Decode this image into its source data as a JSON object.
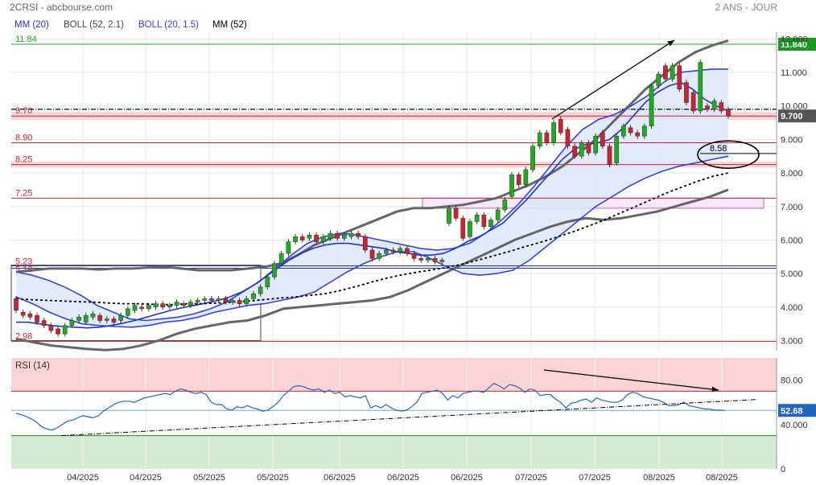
{
  "header": {
    "symbol": "2CRSI - abcbourse.com",
    "period": "2 ANS - JOUR"
  },
  "legend": [
    {
      "label": "MM (20)",
      "color": "#2233cc"
    },
    {
      "label": "BOLL (52, 2.1)",
      "color": "#666666"
    },
    {
      "label": "BOLL (20, 1.5)",
      "color": "#3344dd"
    },
    {
      "label": "MM (52)",
      "color": "#000000"
    }
  ],
  "colors": {
    "up": "#22aa22",
    "down": "#cc2233",
    "mm20": "#2233cc",
    "boll52": "#666666",
    "boll20": "#3344dd",
    "mm52": "#000000",
    "band_fill": "#dde8fa",
    "level_line": "#cc2233",
    "resistance_line": "#22aa22",
    "rsi_line": "#2266bb",
    "rsi_overbought_fill": "#fad4d4",
    "rsi_oversold_fill": "#d5ead2",
    "last_price_badge": "#555555",
    "resistance_badge": "#1a9922",
    "rsi_badge": "#2266bb"
  },
  "chart_data": {
    "type": "candlestick",
    "title": "2CRSI - abcbourse.com",
    "period": "2 ANS - JOUR",
    "price_axis": {
      "ylim": [
        2.7,
        12.2
      ],
      "ticks": [
        "12.000",
        "11.000",
        "10.000",
        "9.000",
        "8.000",
        "7.000",
        "6.000",
        "5.000",
        "4.000",
        "3.000"
      ]
    },
    "x_axis": {
      "tick_labels": [
        "04/2025",
        "04/2025",
        "05/2025",
        "05/2025",
        "06/2025",
        "06/2025",
        "06/2025",
        "07/2025",
        "07/2025",
        "08/2025",
        "08/2025"
      ]
    },
    "grid": true,
    "candles": [
      [
        4.25,
        3.9
      ],
      [
        3.85,
        3.75
      ],
      [
        3.8,
        3.7
      ],
      [
        3.75,
        3.55
      ],
      [
        3.6,
        3.45
      ],
      [
        3.45,
        3.3
      ],
      [
        3.35,
        3.2
      ],
      [
        3.2,
        3.45
      ],
      [
        3.45,
        3.6
      ],
      [
        3.6,
        3.7
      ],
      [
        3.55,
        3.75
      ],
      [
        3.7,
        3.8
      ],
      [
        3.75,
        3.6
      ],
      [
        3.6,
        3.65
      ],
      [
        3.65,
        3.55
      ],
      [
        3.6,
        3.75
      ],
      [
        3.75,
        3.95
      ],
      [
        3.9,
        4.05
      ],
      [
        4.0,
        3.95
      ],
      [
        3.95,
        4.05
      ],
      [
        4.0,
        4.1
      ],
      [
        4.1,
        4.0
      ],
      [
        4.0,
        4.05
      ],
      [
        4.05,
        4.15
      ],
      [
        4.1,
        4.05
      ],
      [
        4.05,
        4.15
      ],
      [
        4.15,
        4.2
      ],
      [
        4.2,
        4.25
      ],
      [
        4.25,
        4.2
      ],
      [
        4.2,
        4.25
      ],
      [
        4.25,
        4.15
      ],
      [
        4.15,
        4.2
      ],
      [
        4.2,
        4.1
      ],
      [
        4.1,
        4.25
      ],
      [
        4.25,
        4.4
      ],
      [
        4.4,
        4.6
      ],
      [
        4.6,
        4.9
      ],
      [
        4.9,
        5.3
      ],
      [
        5.3,
        5.6
      ],
      [
        5.6,
        5.95
      ],
      [
        5.95,
        6.1
      ],
      [
        6.1,
        6.0
      ],
      [
        6.05,
        6.15
      ],
      [
        6.15,
        5.95
      ],
      [
        5.95,
        6.1
      ],
      [
        6.05,
        6.2
      ],
      [
        6.2,
        6.05
      ],
      [
        6.05,
        6.15
      ],
      [
        6.1,
        6.2
      ],
      [
        6.2,
        6.1
      ],
      [
        6.1,
        5.7
      ],
      [
        5.7,
        5.45
      ],
      [
        5.45,
        5.6
      ],
      [
        5.6,
        5.7
      ],
      [
        5.7,
        5.65
      ],
      [
        5.65,
        5.75
      ],
      [
        5.75,
        5.6
      ],
      [
        5.6,
        5.45
      ],
      [
        5.45,
        5.4
      ],
      [
        5.4,
        5.45
      ],
      [
        5.45,
        5.35
      ],
      [
        5.35,
        5.4
      ],
      [
        6.5,
        6.95
      ],
      [
        6.95,
        6.65
      ],
      [
        6.65,
        6.05
      ],
      [
        6.1,
        6.55
      ],
      [
        6.55,
        6.75
      ],
      [
        6.75,
        6.4
      ],
      [
        6.4,
        6.6
      ],
      [
        6.6,
        6.9
      ],
      [
        6.9,
        7.2
      ],
      [
        7.3,
        7.95
      ],
      [
        7.95,
        7.65
      ],
      [
        7.65,
        8.1
      ],
      [
        8.1,
        8.8
      ],
      [
        8.8,
        9.2
      ],
      [
        9.2,
        8.9
      ],
      [
        8.9,
        9.5
      ],
      [
        9.6,
        9.2
      ],
      [
        9.3,
        8.8
      ],
      [
        8.8,
        8.5
      ],
      [
        8.5,
        8.9
      ],
      [
        8.9,
        8.6
      ],
      [
        8.6,
        9.1
      ],
      [
        9.2,
        8.8
      ],
      [
        8.8,
        8.25
      ],
      [
        8.3,
        9.1
      ],
      [
        9.1,
        9.4
      ],
      [
        9.35,
        9.2
      ],
      [
        9.2,
        9.1
      ],
      [
        9.1,
        9.4
      ],
      [
        9.4,
        10.6
      ],
      [
        10.6,
        10.95
      ],
      [
        11.2,
        10.8
      ],
      [
        10.8,
        11.2
      ],
      [
        11.2,
        10.5
      ],
      [
        10.7,
        10.1
      ],
      [
        10.4,
        9.85
      ],
      [
        9.85,
        11.3
      ],
      [
        10.0,
        9.9
      ],
      [
        9.9,
        10.15
      ],
      [
        10.1,
        9.85
      ],
      [
        9.9,
        9.7
      ]
    ],
    "moving_averages": {
      "mm20": [
        3.55,
        3.55,
        3.5,
        3.45,
        3.42,
        3.4,
        3.38,
        3.4,
        3.45,
        3.52,
        3.6,
        3.7,
        3.8,
        3.9,
        3.98,
        4.05,
        4.12,
        4.2,
        4.3,
        4.45,
        4.65,
        4.9,
        5.15,
        5.4,
        5.6,
        5.75,
        5.85,
        5.9,
        5.9,
        5.85,
        5.8,
        5.75,
        5.65,
        5.6,
        5.55,
        5.55,
        5.6,
        5.75,
        5.95,
        6.1,
        6.3,
        6.5,
        6.85,
        7.2,
        7.6,
        8.0,
        8.4,
        8.7,
        8.85,
        8.9,
        9.0,
        9.3,
        9.7,
        10.1,
        10.4,
        10.6,
        10.7,
        10.5,
        10.2,
        10.0,
        9.85
      ],
      "mm52": [
        4.25,
        4.22,
        4.2,
        4.18,
        4.16,
        4.15,
        4.12,
        4.1,
        4.1,
        4.08,
        4.07,
        4.1,
        4.1,
        4.12,
        4.15,
        4.18,
        4.22,
        4.27,
        4.3,
        4.35,
        4.4,
        4.5,
        4.62,
        4.75,
        4.87,
        4.97,
        5.05,
        5.12,
        5.2,
        5.3,
        5.42,
        5.55,
        5.68,
        5.82,
        5.95,
        6.1,
        6.25,
        6.42,
        6.6,
        6.8,
        7.0,
        7.2,
        7.4,
        7.58,
        7.75,
        7.9,
        8.0
      ],
      "mm52_start": 2,
      "boll52_upper": [
        5.05,
        5.1,
        5.15,
        5.15,
        5.15,
        5.12,
        5.15,
        5.15,
        5.18,
        5.2,
        5.15,
        5.1,
        5.1,
        5.1,
        5.15,
        5.2,
        5.3,
        5.55,
        5.85,
        6.05,
        6.25,
        6.45,
        6.65,
        6.85,
        6.95,
        6.95,
        7.0,
        7.05,
        7.15,
        7.25,
        7.45,
        7.65,
        7.9,
        8.2,
        8.6,
        9.0,
        9.5,
        10.0,
        10.5,
        10.9,
        11.3,
        11.6,
        11.8,
        11.95
      ],
      "boll52_lower": [
        3.05,
        2.95,
        2.85,
        2.8,
        2.75,
        2.72,
        2.75,
        2.85,
        3.0,
        3.2,
        3.35,
        3.45,
        3.55,
        3.6,
        3.75,
        3.95,
        4.0,
        4.05,
        4.1,
        4.15,
        4.2,
        4.3,
        4.5,
        4.75,
        5.0,
        5.25,
        5.5,
        5.75,
        6.0,
        6.2,
        6.4,
        6.55,
        6.65,
        6.6,
        6.65,
        6.75,
        6.85,
        7.0,
        7.15,
        7.3,
        7.5
      ],
      "boll20_upper": [
        5.05,
        4.95,
        4.8,
        4.6,
        4.35,
        4.05,
        3.85,
        3.65,
        3.6,
        3.65,
        3.7,
        3.8,
        3.95,
        4.15,
        4.45,
        4.75,
        5.15,
        5.55,
        5.9,
        6.1,
        6.2,
        6.15,
        6.05,
        5.95,
        5.85,
        5.75,
        5.7,
        5.75,
        5.9,
        6.2,
        6.6,
        7.05,
        7.6,
        8.2,
        8.8,
        9.3,
        9.6,
        9.75,
        10.0,
        10.3,
        10.7,
        11.0,
        11.05,
        11.1,
        11.1
      ],
      "boll20_lower": [
        4.3,
        4.1,
        3.85,
        3.65,
        3.5,
        3.45,
        3.42,
        3.4,
        3.45,
        3.55,
        3.6,
        3.7,
        3.85,
        3.95,
        4.05,
        4.1,
        4.2,
        4.3,
        4.45,
        4.75,
        5.05,
        5.3,
        5.5,
        5.65,
        5.65,
        5.45,
        5.2,
        5.0,
        4.95,
        5.0,
        5.1,
        5.4,
        5.8,
        6.2,
        6.6,
        7.0,
        7.3,
        7.6,
        7.85,
        8.05,
        8.2,
        8.3,
        8.4,
        8.5
      ]
    },
    "levels": [
      {
        "label": "11.84",
        "value": 11.84,
        "type": "resistance"
      },
      {
        "label": "9.70",
        "value": 9.7,
        "type": "zone"
      },
      {
        "label": "8.90",
        "value": 8.9,
        "type": "line"
      },
      {
        "label": "8.25",
        "value": 8.25,
        "type": "zone"
      },
      {
        "label": "7.25",
        "value": 7.25,
        "type": "line"
      },
      {
        "label": "5.23",
        "value": 5.23,
        "type": "line"
      },
      {
        "label": "5.16",
        "value": 5.16,
        "type": "line"
      },
      {
        "label": "2.98",
        "value": 2.98,
        "type": "line"
      }
    ],
    "annotations": [
      {
        "text": "8.58",
        "value": 8.58,
        "shape": "ellipse"
      }
    ],
    "badges": [
      {
        "text": "11.840",
        "value": 11.84
      },
      {
        "text": "9.700",
        "value": 9.7
      }
    ],
    "rsi": {
      "label": "RSI (14)",
      "ylim": [
        0,
        100
      ],
      "ticks": [
        "80.00",
        "40.000",
        "0"
      ],
      "overbought": 70,
      "oversold": 30,
      "last_text": "52.68",
      "values": [
        50,
        49,
        47,
        45,
        42,
        38,
        36,
        35,
        37,
        40,
        43,
        44,
        46,
        48,
        47,
        46,
        48,
        52,
        55,
        58,
        60,
        61,
        61,
        60,
        62,
        64,
        65,
        66,
        67,
        68,
        67,
        70,
        72,
        71,
        69,
        68,
        69,
        67,
        60,
        58,
        58,
        54,
        53,
        56,
        55,
        57,
        55,
        54,
        52,
        53,
        56,
        60,
        66,
        70,
        74,
        75,
        74,
        72,
        71,
        72,
        69,
        71,
        68,
        69,
        65,
        66,
        65,
        64,
        66,
        55,
        57,
        55,
        58,
        55,
        53,
        52,
        53,
        56,
        60,
        68,
        69,
        70,
        71,
        68,
        62,
        66,
        64,
        68,
        69,
        70,
        70,
        69,
        73,
        77,
        75,
        72,
        76,
        75,
        73,
        69,
        72,
        71,
        66,
        67,
        67,
        63,
        60,
        55,
        59,
        60,
        62,
        63,
        60,
        64,
        62,
        61,
        60,
        60,
        62,
        67,
        69,
        68,
        65,
        64,
        63,
        62,
        60,
        57,
        57,
        58,
        60,
        57,
        56,
        55,
        54,
        54,
        53,
        53,
        52.7
      ]
    }
  }
}
